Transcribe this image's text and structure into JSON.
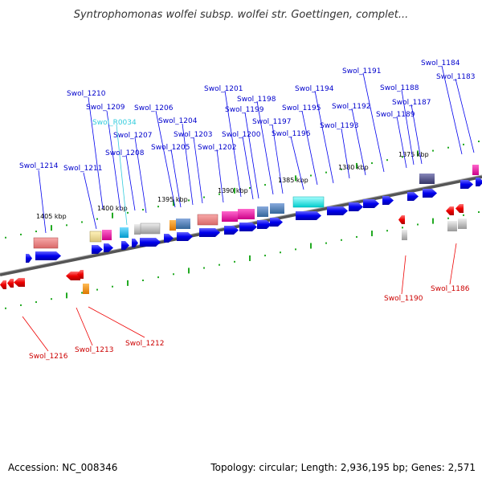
{
  "title": "Syntrophomonas wolfei subsp. wolfei str. Goettingen, complet...",
  "footer": {
    "accession": "Accession: NC_008346",
    "topology": "Topology: circular; Length: 2,936,195 bp; Genes: 2,571"
  },
  "scale_labels": [
    "1405 kbp",
    "1400 kbp",
    "1395 kbp",
    "1390 kbp",
    "1385 kbp",
    "1380 kbp",
    "1375 kbp"
  ],
  "gene_labels_top": [
    "Swol_1214",
    "Swol_1211",
    "Swol_1210",
    "Swol_1209",
    "Swol_R0034",
    "Swol_1208",
    "Swol_1207",
    "Swol_1206",
    "Swol_1205",
    "Swol_1204",
    "Swol_1203",
    "Swol_1202",
    "Swol_1201",
    "Swol_1200",
    "Swol_1199",
    "Swol_1198",
    "Swol_1197",
    "Swol_1196",
    "Swol_1195",
    "Swol_1194",
    "Swol_1193",
    "Swol_1192",
    "Swol_1191",
    "Swol_1189",
    "Swol_1188",
    "Swol_1187",
    "Swol_1184",
    "Swol_1183"
  ],
  "gene_labels_bottom": [
    "Swol_1216",
    "Swol_1213",
    "Swol_1212",
    "Swol_1190",
    "Swol_1186"
  ],
  "colors": {
    "forward_gene": "#0000ee",
    "reverse_gene": "#ee0000",
    "rna_label": "#33ccdd",
    "tick": "#22aa22",
    "backbone": "#666666"
  }
}
